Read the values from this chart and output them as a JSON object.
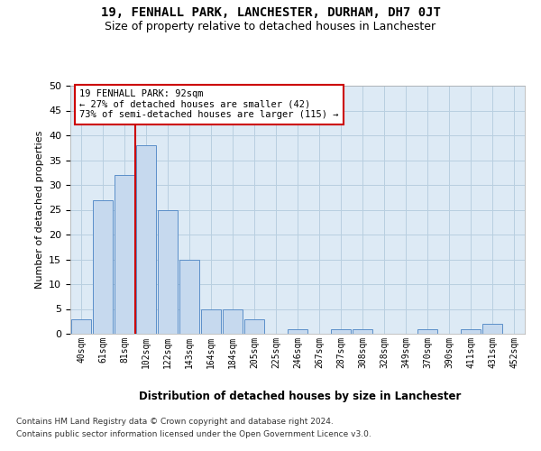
{
  "title": "19, FENHALL PARK, LANCHESTER, DURHAM, DH7 0JT",
  "subtitle": "Size of property relative to detached houses in Lanchester",
  "xlabel": "Distribution of detached houses by size in Lanchester",
  "ylabel": "Number of detached properties",
  "categories": [
    "40sqm",
    "61sqm",
    "81sqm",
    "102sqm",
    "122sqm",
    "143sqm",
    "164sqm",
    "184sqm",
    "205sqm",
    "225sqm",
    "246sqm",
    "267sqm",
    "287sqm",
    "308sqm",
    "328sqm",
    "349sqm",
    "370sqm",
    "390sqm",
    "411sqm",
    "431sqm",
    "452sqm"
  ],
  "bar_heights": [
    3,
    27,
    32,
    38,
    25,
    15,
    5,
    5,
    3,
    0,
    1,
    0,
    1,
    1,
    0,
    0,
    1,
    0,
    1,
    2,
    0
  ],
  "bar_color": "#c6d9ee",
  "bar_edge_color": "#5b8fc9",
  "red_line_index": 2,
  "ylim": [
    0,
    50
  ],
  "yticks": [
    0,
    5,
    10,
    15,
    20,
    25,
    30,
    35,
    40,
    45,
    50
  ],
  "annotation_line1": "19 FENHALL PARK: 92sqm",
  "annotation_line2": "← 27% of detached houses are smaller (42)",
  "annotation_line3": "73% of semi-detached houses are larger (115) →",
  "annotation_box_edge_color": "#cc0000",
  "property_line_color": "#cc0000",
  "background_color": "#ffffff",
  "plot_bg_color": "#ddeaf5",
  "grid_color": "#b8cfe0",
  "footer_line1": "Contains HM Land Registry data © Crown copyright and database right 2024.",
  "footer_line2": "Contains public sector information licensed under the Open Government Licence v3.0."
}
